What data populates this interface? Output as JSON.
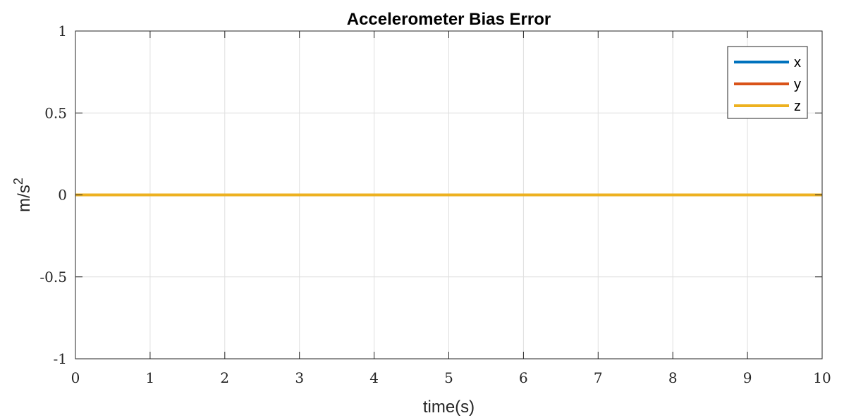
{
  "chart_data": {
    "type": "line",
    "title": "Accelerometer Bias Error",
    "xlabel": "time(s)",
    "ylabel": "m/s",
    "ylabel_superscript": "2",
    "xlim": [
      0,
      10
    ],
    "ylim": [
      -1,
      1
    ],
    "xticks": [
      0,
      1,
      2,
      3,
      4,
      5,
      6,
      7,
      8,
      9,
      10
    ],
    "yticks": [
      -1,
      -0.5,
      0,
      0.5,
      1
    ],
    "xtick_labels": [
      "0",
      "1",
      "2",
      "3",
      "4",
      "5",
      "6",
      "7",
      "8",
      "9",
      "10"
    ],
    "ytick_labels": [
      "-1",
      "-0.5",
      "0",
      "0.5",
      "1"
    ],
    "grid": true,
    "legend_position": "top-right",
    "x": [
      0,
      10
    ],
    "series": [
      {
        "name": "x",
        "color": "#0072BD",
        "values": [
          0,
          0
        ]
      },
      {
        "name": "y",
        "color": "#D95319",
        "values": [
          0,
          0
        ]
      },
      {
        "name": "z",
        "color": "#EDB120",
        "values": [
          0,
          0
        ]
      }
    ]
  }
}
